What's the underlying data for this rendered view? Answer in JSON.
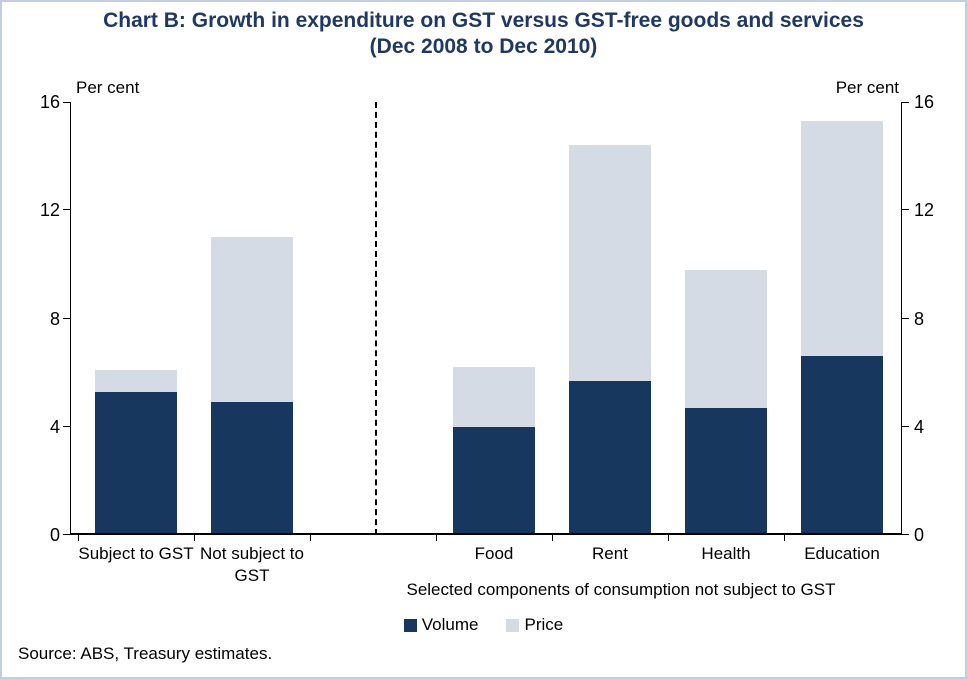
{
  "colors": {
    "title": "#1F3864",
    "volume": "#17375E",
    "price": "#D5DBE5",
    "frame_border": "#C2CCE4"
  },
  "chart_data": {
    "type": "bar",
    "stacked": true,
    "title": "Chart B: Growth in expenditure on GST versus GST-free goods and services",
    "subtitle": "(Dec 2008 to Dec 2010)",
    "ylabel": "Per cent",
    "ylim": [
      0,
      16
    ],
    "yticks": [
      0,
      4,
      8,
      12,
      16
    ],
    "grid": false,
    "legend_position": "bottom",
    "legend": [
      {
        "label": "Volume",
        "color": "#17375E"
      },
      {
        "label": "Price",
        "color": "#D5DBE5"
      }
    ],
    "groups": [
      {
        "categories": [
          "Subject to GST",
          "Not subject to GST"
        ],
        "series": [
          {
            "name": "Volume",
            "values": [
              5.3,
              4.9
            ]
          },
          {
            "name": "Price",
            "values": [
              0.8,
              6.1
            ]
          }
        ],
        "totals": [
          6.1,
          11.0
        ]
      },
      {
        "label": "Selected components of consumption not subject  to GST",
        "categories": [
          "Food",
          "Rent",
          "Health",
          "Education"
        ],
        "series": [
          {
            "name": "Volume",
            "values": [
              4.0,
              5.7,
              4.7,
              6.6
            ]
          },
          {
            "name": "Price",
            "values": [
              2.2,
              8.7,
              5.1,
              8.7
            ]
          }
        ],
        "totals": [
          6.2,
          14.4,
          9.8,
          15.3
        ]
      }
    ],
    "source": "Source: ABS, Treasury estimates."
  }
}
